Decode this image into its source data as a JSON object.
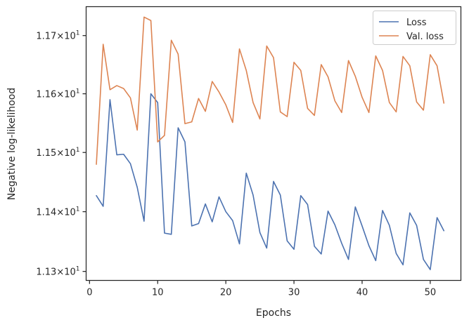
{
  "chart_data": {
    "type": "line",
    "xlabel": "Epochs",
    "ylabel": "Negative log-likelihood",
    "x": [
      1,
      2,
      3,
      4,
      5,
      6,
      7,
      8,
      9,
      10,
      11,
      12,
      13,
      14,
      15,
      16,
      17,
      18,
      19,
      20,
      21,
      22,
      23,
      24,
      25,
      26,
      27,
      28,
      29,
      30,
      31,
      32,
      33,
      34,
      35,
      36,
      37,
      38,
      39,
      40,
      41,
      42,
      43,
      44,
      45,
      46,
      47,
      48,
      49,
      50,
      51,
      52
    ],
    "xlim": [
      -0.5,
      54.5
    ],
    "ylim": [
      11.285,
      11.75
    ],
    "y_scale": "log",
    "grid": false,
    "legend_position": "top-right",
    "xticks": [
      0,
      10,
      20,
      30,
      40,
      50
    ],
    "xtick_labels": [
      "0",
      "10",
      "20",
      "30",
      "40",
      "50"
    ],
    "yticks": [
      11.3,
      11.4,
      11.5,
      11.6,
      11.7
    ],
    "ytick_labels": [
      {
        "mantissa": "1.13",
        "times": "×",
        "base": "10",
        "exp": "1"
      },
      {
        "mantissa": "1.14",
        "times": "×",
        "base": "10",
        "exp": "1"
      },
      {
        "mantissa": "1.15",
        "times": "×",
        "base": "10",
        "exp": "1"
      },
      {
        "mantissa": "1.16",
        "times": "×",
        "base": "10",
        "exp": "1"
      },
      {
        "mantissa": "1.17",
        "times": "×",
        "base": "10",
        "exp": "1"
      }
    ],
    "series": [
      {
        "name": "Loss",
        "color": "#4c72b0",
        "values": [
          11.427,
          11.409,
          11.59,
          11.496,
          11.497,
          11.481,
          11.441,
          11.384,
          11.6,
          11.585,
          11.364,
          11.362,
          11.542,
          11.518,
          11.376,
          11.38,
          11.413,
          11.383,
          11.425,
          11.4,
          11.385,
          11.346,
          11.465,
          11.428,
          11.365,
          11.339,
          11.451,
          11.428,
          11.351,
          11.337,
          11.427,
          11.412,
          11.342,
          11.329,
          11.401,
          11.378,
          11.347,
          11.32,
          11.408,
          11.376,
          11.343,
          11.318,
          11.402,
          11.377,
          11.33,
          11.311,
          11.398,
          11.377,
          11.32,
          11.303,
          11.39,
          11.368
        ]
      },
      {
        "name": "Val. loss",
        "color": "#dd8452",
        "values": [
          11.48,
          11.685,
          11.607,
          11.614,
          11.609,
          11.593,
          11.538,
          11.732,
          11.726,
          11.518,
          11.529,
          11.692,
          11.668,
          11.549,
          11.552,
          11.592,
          11.57,
          11.621,
          11.603,
          11.581,
          11.551,
          11.677,
          11.64,
          11.585,
          11.557,
          11.682,
          11.662,
          11.569,
          11.561,
          11.654,
          11.64,
          11.575,
          11.563,
          11.65,
          11.629,
          11.588,
          11.568,
          11.657,
          11.63,
          11.594,
          11.568,
          11.665,
          11.64,
          11.585,
          11.569,
          11.664,
          11.648,
          11.586,
          11.572,
          11.667,
          11.648,
          11.584
        ]
      }
    ]
  }
}
